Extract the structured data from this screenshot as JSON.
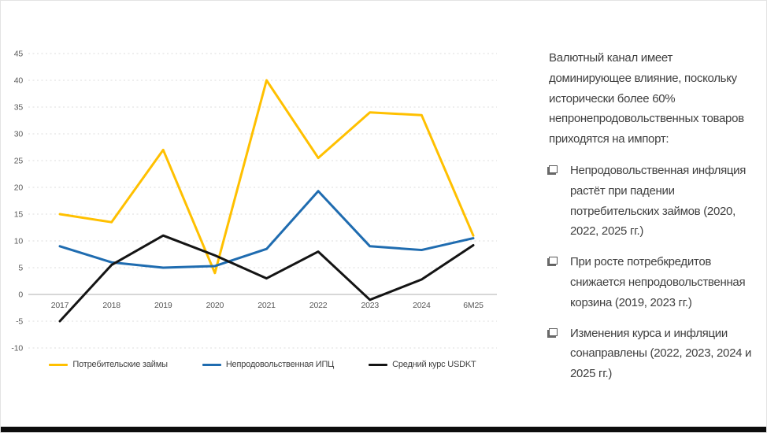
{
  "panel": {
    "intro": "Валютный канал имеет доминирующее влияние, поскольку исторически более 60% непронепродовольственных товаров приходятся на импорт:",
    "bullets": [
      "Непродовольственная инфляция растёт при падении потребительских займов (2020, 2022, 2025 гг.)",
      "При росте потребкредитов снижается непродовольственная корзина (2019, 2023 гг.)",
      "Изменения курса и инфляции сонаправлены (2022, 2023, 2024 и 2025 гг.)"
    ]
  },
  "chart_data": {
    "type": "line",
    "categories": [
      "2017",
      "2018",
      "2019",
      "2020",
      "2021",
      "2022",
      "2023",
      "2024",
      "6М25"
    ],
    "series": [
      {
        "name": "Потребительские займы",
        "color": "#FFC000",
        "values": [
          15,
          13.5,
          27,
          4,
          40,
          25.5,
          34,
          33.5,
          11
        ]
      },
      {
        "name": "Непродовольственная ИПЦ",
        "color": "#1F6CB0",
        "values": [
          9,
          6,
          5,
          5.3,
          8.5,
          19.3,
          9,
          8.3,
          10.5
        ]
      },
      {
        "name": "Средний курс USDKT",
        "color": "#141414",
        "values": [
          -5,
          5.5,
          11,
          7.3,
          3,
          8,
          -1,
          2.8,
          9.2
        ]
      }
    ],
    "title": "",
    "xlabel": "",
    "ylabel": "",
    "ylim": [
      -10,
      45
    ],
    "ytick_step": 5,
    "grid": "dashed-horizontal",
    "zero_line": "solid",
    "legend_position": "bottom",
    "colors": {
      "grid": "#dcdcdc",
      "zero_line": "#bfbfbf",
      "axis_text": "#595959"
    }
  }
}
